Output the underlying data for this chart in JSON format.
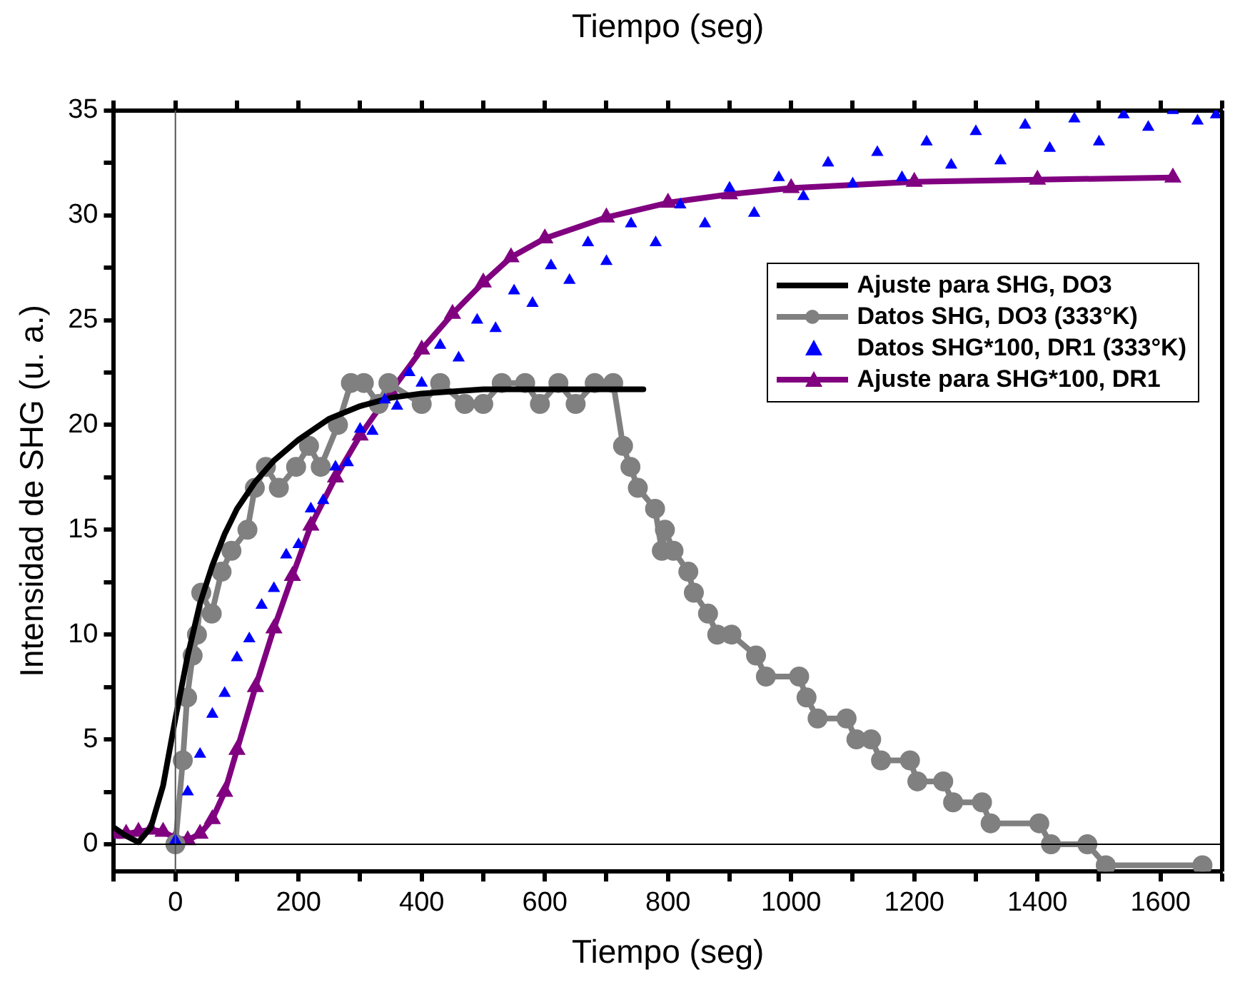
{
  "chart_data": {
    "type": "line",
    "x2label": "Tiempo (seg)",
    "xlabel": "Tiempo (seg)",
    "ylabel": "Intensidad de SHG (u. a.)",
    "xlim": [
      -100,
      1700
    ],
    "ylim": [
      -1.3,
      35
    ],
    "xticks": [
      {
        "value": -100,
        "label": null
      },
      0,
      {
        "value": 100,
        "label": null
      },
      200,
      {
        "value": 300,
        "label": null
      },
      400,
      {
        "value": 500,
        "label": null
      },
      600,
      {
        "value": 700,
        "label": null
      },
      800,
      {
        "value": 900,
        "label": null
      },
      1000,
      {
        "value": 1100,
        "label": null
      },
      1200,
      {
        "value": 1300,
        "label": null
      },
      1400,
      {
        "value": 1500,
        "label": null
      },
      1600,
      {
        "value": 1700,
        "label": null
      }
    ],
    "yticks": [
      0,
      {
        "value": 2.5,
        "label": null
      },
      5,
      {
        "value": 7.5,
        "label": null
      },
      10,
      {
        "value": 12.5,
        "label": null
      },
      15,
      {
        "value": 17.5,
        "label": null
      },
      20,
      {
        "value": 22.5,
        "label": null
      },
      25,
      {
        "value": 27.5,
        "label": null
      },
      30,
      {
        "value": 32.5,
        "label": null
      },
      35
    ],
    "grid": false,
    "legend": "top right",
    "ref_lines": [
      {
        "axis": "x",
        "value": 0,
        "color": "#555555"
      },
      {
        "axis": "y",
        "value": 0,
        "color": "#000000"
      }
    ],
    "series": [
      {
        "name": "Ajuste para SHG, DO3",
        "color": "#000000",
        "marker": "none",
        "x": [
          -100,
          -80,
          -60,
          -40,
          -20,
          0,
          20,
          40,
          60,
          80,
          100,
          130,
          160,
          200,
          250,
          300,
          350,
          400,
          500,
          600,
          700,
          760
        ],
        "values": [
          0.8,
          0.4,
          0.1,
          0.8,
          2.8,
          6,
          9,
          11.5,
          13.3,
          14.8,
          16,
          17.3,
          18.3,
          19.3,
          20.3,
          20.9,
          21.3,
          21.5,
          21.7,
          21.7,
          21.7,
          21.7
        ]
      },
      {
        "name": "Datos SHG, DO3 (333°K)",
        "color": "#808080",
        "marker": "circle",
        "x": [
          0,
          12,
          19,
          28,
          35,
          42,
          59,
          75,
          91,
          117,
          129,
          147,
          168,
          196,
          217,
          236,
          264,
          285,
          306,
          330,
          346,
          400,
          430,
          470,
          500,
          530,
          568,
          592,
          622,
          650,
          681,
          711,
          727,
          739,
          751,
          779,
          790,
          795,
          809,
          833,
          842,
          865,
          880,
          903,
          943,
          959,
          1013,
          1025,
          1043,
          1090,
          1106,
          1130,
          1146,
          1193,
          1205,
          1247,
          1263,
          1310,
          1324,
          1403,
          1422,
          1481,
          1511,
          1668
        ],
        "values": [
          0,
          4,
          7,
          9,
          10,
          12,
          11,
          13,
          14,
          15,
          17,
          18,
          17,
          18,
          19,
          18,
          20,
          22,
          22,
          21,
          22,
          21,
          22,
          21,
          21,
          22,
          22,
          21,
          22,
          21,
          22,
          22,
          19,
          18,
          17,
          16,
          14,
          15,
          14,
          13,
          12,
          11,
          10,
          10,
          9,
          8,
          8,
          7,
          6,
          6,
          5,
          5,
          4,
          4,
          3,
          3,
          2,
          2,
          1,
          1,
          0,
          0,
          -1,
          -1
        ]
      },
      {
        "name": "Datos SHG*100, DR1 (333°K)",
        "type": "scatter",
        "color": "#0000ff",
        "marker": "triangle",
        "x": [
          0,
          20,
          40,
          60,
          80,
          100,
          120,
          140,
          160,
          180,
          200,
          220,
          240,
          260,
          280,
          300,
          320,
          340,
          360,
          380,
          400,
          430,
          460,
          490,
          520,
          550,
          580,
          610,
          640,
          670,
          700,
          740,
          780,
          820,
          860,
          900,
          940,
          980,
          1020,
          1060,
          1100,
          1140,
          1180,
          1220,
          1260,
          1300,
          1340,
          1380,
          1420,
          1460,
          1500,
          1540,
          1580,
          1620,
          1660,
          1690
        ],
        "values": [
          0.2,
          2.5,
          4.3,
          6.2,
          7.2,
          8.9,
          9.8,
          11.4,
          12.2,
          13.8,
          14.3,
          16,
          16.4,
          18,
          18.2,
          19.8,
          19.7,
          21.2,
          20.9,
          22.5,
          22,
          23.8,
          23.2,
          25,
          24.6,
          26.4,
          25.8,
          27.6,
          26.9,
          28.7,
          27.8,
          29.6,
          28.7,
          30.5,
          29.6,
          31.3,
          30.1,
          31.8,
          30.9,
          32.5,
          31.5,
          33,
          31.8,
          33.5,
          32.4,
          34,
          32.6,
          34.3,
          33.2,
          34.6,
          33.5,
          34.8,
          34.2,
          35,
          34.5,
          34.8
        ]
      },
      {
        "name": "Ajuste para SHG*100, DR1",
        "color": "#800080",
        "marker": "triangle",
        "x": [
          -100,
          -80,
          -60,
          -40,
          -20,
          0,
          20,
          40,
          60,
          80,
          100,
          130,
          160,
          190,
          220,
          260,
          300,
          350,
          400,
          450,
          500,
          545,
          600,
          700,
          800,
          900,
          1000,
          1200,
          1400,
          1620
        ],
        "values": [
          0.5,
          0.5,
          0.6,
          0.7,
          0.6,
          0.3,
          0.2,
          0.5,
          1.2,
          2.5,
          4.5,
          7.5,
          10.3,
          12.8,
          15.2,
          17.5,
          19.5,
          21.6,
          23.6,
          25.3,
          26.8,
          28,
          28.9,
          29.9,
          30.6,
          31,
          31.3,
          31.6,
          31.7,
          31.8
        ]
      }
    ]
  }
}
